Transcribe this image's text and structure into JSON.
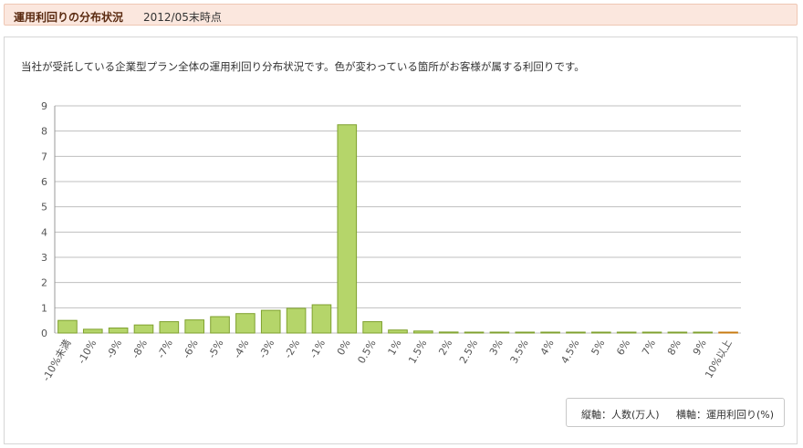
{
  "header": {
    "title": "運用利回りの分布状況",
    "date": "2012/05末時点"
  },
  "description": "当社が受託している企業型プラン全体の運用利回り分布状況です。色が変わっている箇所がお客様が属する利回りです。",
  "legend": {
    "y_axis": "縦軸：人数(万人)",
    "x_axis": "横軸：運用利回り(%)"
  },
  "colors": {
    "bar": "#b5d56a",
    "bar_stroke": "#7fa12e",
    "highlight": "#f0a030",
    "grid": "#bfbfbf"
  },
  "chart_data": {
    "type": "bar",
    "categories": [
      "-10%未満",
      "-10%",
      "-9%",
      "-8%",
      "-7%",
      "-6%",
      "-5%",
      "-4%",
      "-3%",
      "-2%",
      "-1%",
      "0%",
      "0.5%",
      "1%",
      "1.5%",
      "2%",
      "2.5%",
      "3%",
      "3.5%",
      "4%",
      "4.5%",
      "5%",
      "6%",
      "7%",
      "8%",
      "9%",
      "10%以上"
    ],
    "values": [
      0.5,
      0.15,
      0.2,
      0.32,
      0.45,
      0.52,
      0.65,
      0.77,
      0.9,
      0.98,
      1.12,
      8.25,
      0.45,
      0.12,
      0.08,
      0.04,
      0.03,
      0.01,
      0.01,
      0.01,
      0.01,
      0.01,
      0.01,
      0.01,
      0.01,
      0.01,
      0.02
    ],
    "highlight_index": 26,
    "ylim": [
      0,
      9
    ],
    "yticks": [
      "0",
      "1",
      "2",
      "3",
      "4",
      "5",
      "6",
      "7",
      "8",
      "9"
    ],
    "grid": true
  }
}
